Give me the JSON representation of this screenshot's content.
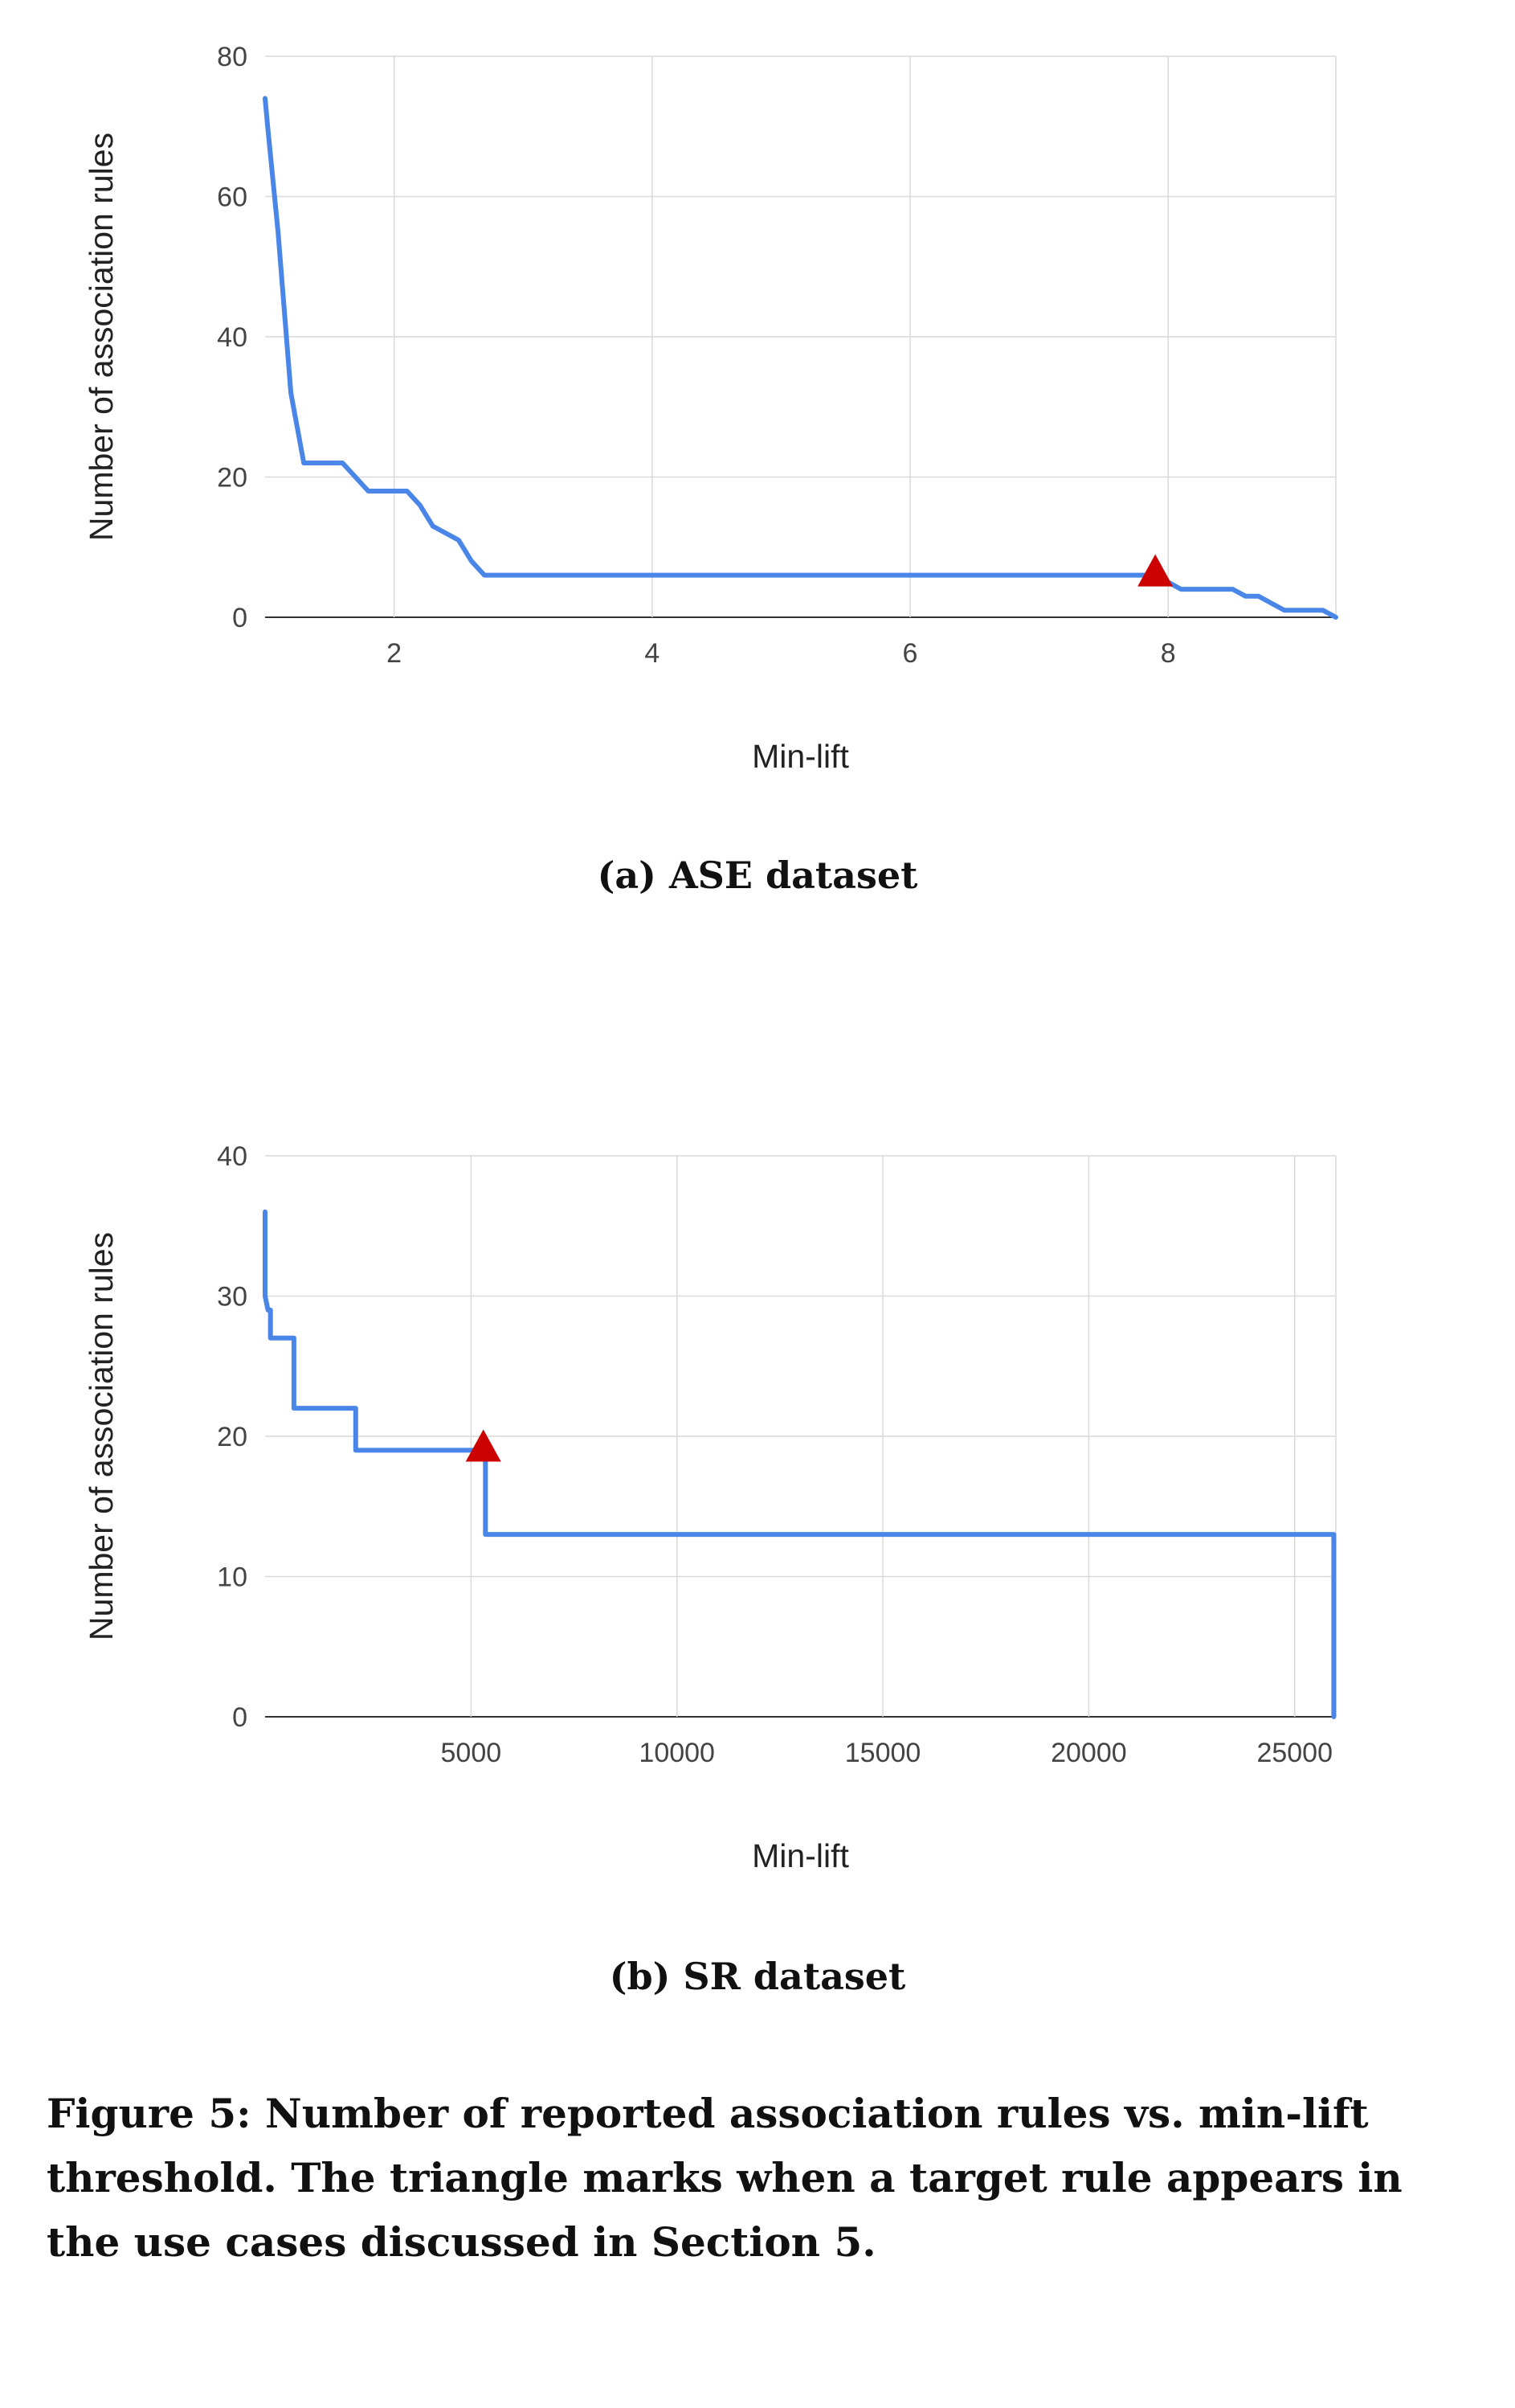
{
  "chart_data": [
    {
      "type": "line",
      "subcaption": "(a) ASE dataset",
      "xlabel": "Min-lift",
      "ylabel": "Number of association rules",
      "xlim": [
        1,
        9.3
      ],
      "ylim": [
        0,
        80
      ],
      "xticks": [
        2,
        4,
        6,
        8
      ],
      "yticks": [
        0,
        20,
        40,
        60,
        80
      ],
      "grid": true,
      "series": [
        {
          "color": "#4a86e8",
          "points": [
            [
              1.0,
              74
            ],
            [
              1.02,
              70
            ],
            [
              1.1,
              55
            ],
            [
              1.2,
              32
            ],
            [
              1.3,
              22
            ],
            [
              1.6,
              22
            ],
            [
              1.8,
              18
            ],
            [
              2.1,
              18
            ],
            [
              2.2,
              16
            ],
            [
              2.3,
              13
            ],
            [
              2.5,
              11
            ],
            [
              2.6,
              8
            ],
            [
              2.7,
              6
            ],
            [
              7.9,
              6
            ],
            [
              8.1,
              4
            ],
            [
              8.5,
              4
            ],
            [
              8.6,
              3
            ],
            [
              8.7,
              3
            ],
            [
              8.9,
              1
            ],
            [
              9.2,
              1
            ],
            [
              9.3,
              0
            ]
          ]
        }
      ],
      "marker": {
        "shape": "triangle",
        "color": "#cc0000",
        "x": 7.9,
        "y": 6
      }
    },
    {
      "type": "line",
      "subcaption": "(b) SR dataset",
      "xlabel": "Min-lift",
      "ylabel": "Number of association rules",
      "xlim": [
        0,
        26000
      ],
      "ylim": [
        0,
        40
      ],
      "xticks": [
        5000,
        10000,
        15000,
        20000,
        25000
      ],
      "yticks": [
        0,
        10,
        20,
        30,
        40
      ],
      "grid": true,
      "series": [
        {
          "color": "#4a86e8",
          "points": [
            [
              0,
              36
            ],
            [
              0,
              30
            ],
            [
              70,
              29
            ],
            [
              130,
              29
            ],
            [
              130,
              27
            ],
            [
              700,
              27
            ],
            [
              700,
              22
            ],
            [
              2200,
              22
            ],
            [
              2200,
              19
            ],
            [
              5350,
              19
            ],
            [
              5350,
              13
            ],
            [
              25950,
              13
            ],
            [
              25950,
              0
            ]
          ]
        }
      ],
      "marker": {
        "shape": "triangle",
        "color": "#cc0000",
        "x": 5300,
        "y": 19
      }
    }
  ],
  "figure_caption": "Figure 5: Number of reported association rules vs. min-lift threshold. The triangle marks when a target rule appears in the use cases discussed in Section 5."
}
